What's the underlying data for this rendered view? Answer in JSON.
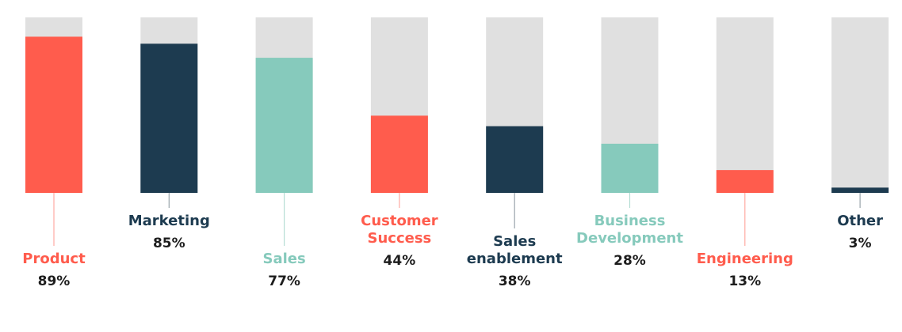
{
  "chart_data": {
    "type": "bar",
    "title": "",
    "xlabel": "",
    "ylabel": "",
    "ylim": [
      0,
      100
    ],
    "grid": false,
    "legend": "none",
    "value_suffix": "%",
    "categories": [
      [
        "Product"
      ],
      [
        "Marketing"
      ],
      [
        "Sales"
      ],
      [
        "Customer",
        "Success"
      ],
      [
        "Sales",
        "enablement"
      ],
      [
        "Business",
        "Development"
      ],
      [
        "Engineering"
      ],
      [
        "Other"
      ]
    ],
    "values": [
      89,
      85,
      77,
      44,
      38,
      28,
      13,
      3
    ],
    "value_labels": [
      "89%",
      "85%",
      "77%",
      "44%",
      "38%",
      "28%",
      "13%",
      "3%"
    ],
    "colors": [
      "#ff5c4d",
      "#1d3b50",
      "#86cabc",
      "#ff5c4d",
      "#1d3b50",
      "#86cabc",
      "#ff5c4d",
      "#1d3b50"
    ],
    "track_color": "#e0e0e0",
    "connector_color": "#bbbbbb"
  }
}
